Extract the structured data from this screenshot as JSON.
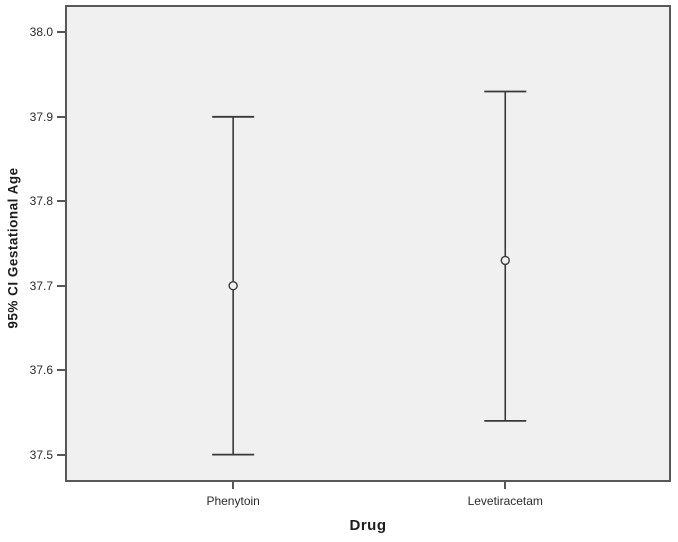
{
  "chart_data": {
    "type": "errorbar",
    "title": "",
    "xlabel": "Drug",
    "ylabel": "95% CI Gestational Age",
    "categories": [
      "Phenytoin",
      "Levetiracetam"
    ],
    "series": [
      {
        "name": "95% CI Gestational Age",
        "means": [
          37.7,
          37.73
        ],
        "ci_low": [
          37.5,
          37.54
        ],
        "ci_high": [
          37.9,
          37.93
        ]
      }
    ],
    "ylim": [
      37.47,
      38.03
    ],
    "yticks": [
      38.0,
      37.9,
      37.8,
      37.7,
      37.6,
      37.5
    ],
    "ytick_labels": [
      "38.0",
      "37.9",
      "37.8",
      "37.7",
      "37.6",
      "37.5"
    ],
    "grid": false,
    "legend": "none",
    "marker": "open-circle",
    "colors": {
      "plot_background": "#f0f0f0",
      "frame": "#58585a",
      "error_bar": "#39393b",
      "text": "#1d1d1d"
    }
  }
}
